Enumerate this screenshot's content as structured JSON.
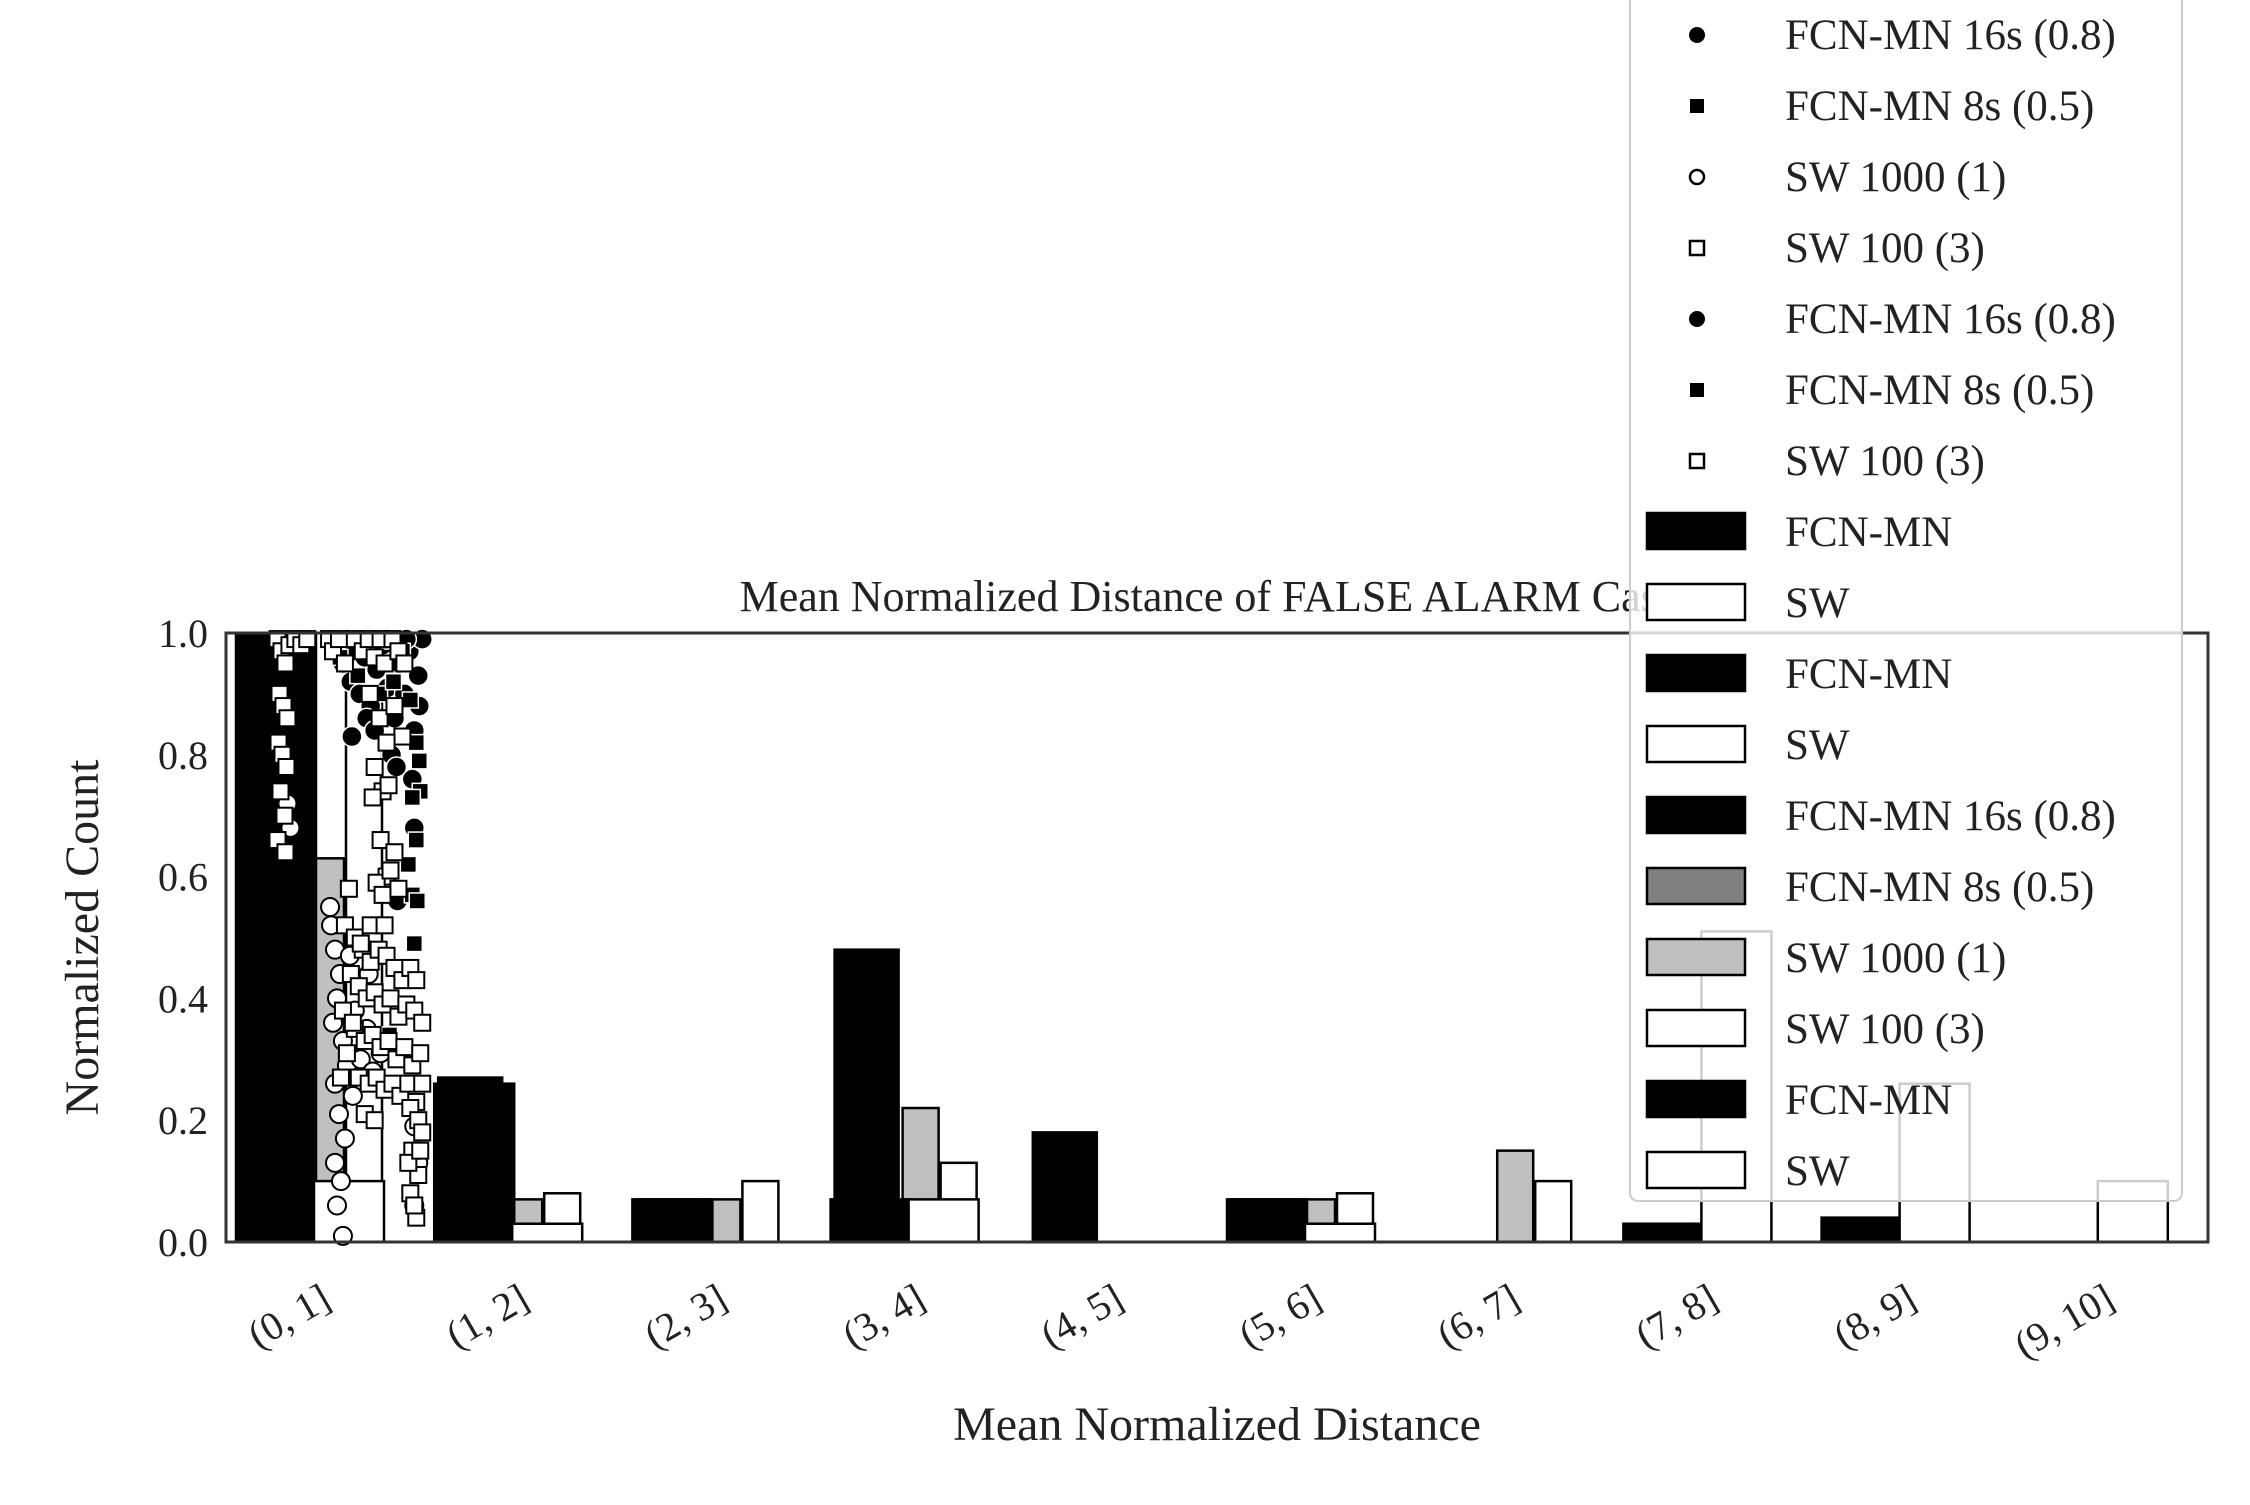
{
  "chart_data": {
    "type": "bar",
    "title": "Mean Normalized Distance of FALSE ALARM Cases",
    "xlabel": "Mean Normalized Distance",
    "ylabel": "Normalized Count",
    "ylim": [
      0.0,
      1.0
    ],
    "yticks": [
      "0.0",
      "0.2",
      "0.4",
      "0.6",
      "0.8",
      "1.0"
    ],
    "categories": [
      "(0, 1]",
      "(1, 2]",
      "(2, 3]",
      "(3, 4]",
      "(4, 5]",
      "(5, 6]",
      "(6, 7]",
      "(7, 8]",
      "(8, 9]",
      "(9, 10]"
    ],
    "grid": false,
    "legend_position": "top-right",
    "colors": {
      "black": "#000000",
      "dark_gray": "#7f7f7f",
      "light_gray": "#bfbfbf",
      "white": "#ffffff",
      "axis": "#333333"
    },
    "series": [
      {
        "name": "FCN-MN 16s (0.8)",
        "kind": "bar",
        "color": "black",
        "values": [
          1.0,
          0.27,
          0.07,
          0.48,
          0.18,
          0.07,
          0.0,
          0.03,
          0.0,
          0.0
        ]
      },
      {
        "name": "FCN-MN 8s (0.5)",
        "kind": "bar",
        "color": "dark_gray",
        "values": [
          0.91,
          0.0,
          0.0,
          0.0,
          0.0,
          0.0,
          0.0,
          0.0,
          0.0,
          0.0
        ]
      },
      {
        "name": "SW 1000 (1)",
        "kind": "bar",
        "color": "light_gray",
        "values": [
          0.63,
          0.07,
          0.07,
          0.22,
          0.0,
          0.07,
          0.15,
          0.0,
          0.0,
          0.0
        ]
      },
      {
        "name": "SW 100 (3)",
        "kind": "bar",
        "color": "white",
        "values": [
          0.96,
          0.08,
          0.1,
          0.13,
          0.0,
          0.08,
          0.1,
          0.0,
          0.0,
          0.0
        ]
      },
      {
        "name": "FCN-MN",
        "kind": "bar",
        "color": "black",
        "values": [
          1.0,
          0.26,
          0.07,
          0.07,
          0.0,
          0.07,
          0.0,
          0.03,
          0.04,
          0.0
        ]
      },
      {
        "name": "SW",
        "kind": "bar",
        "color": "white",
        "values": [
          0.1,
          0.03,
          0.0,
          0.07,
          0.0,
          0.03,
          0.0,
          0.51,
          0.26,
          0.1
        ]
      }
    ],
    "scatter": [
      {
        "name": "FCN-MN 16s (0.8)",
        "marker": "filled-circle",
        "points": [
          [
            1.12,
            0.98
          ],
          [
            1.18,
            0.95
          ],
          [
            1.22,
            0.99
          ],
          [
            1.26,
            0.92
          ],
          [
            1.3,
            0.97
          ],
          [
            1.35,
            0.9
          ],
          [
            1.4,
            0.96
          ],
          [
            1.46,
            0.88
          ],
          [
            1.52,
            0.94
          ],
          [
            1.58,
            0.98
          ],
          [
            1.63,
            0.91
          ],
          [
            1.7,
            0.86
          ],
          [
            1.75,
            0.95
          ],
          [
            1.8,
            0.9
          ],
          [
            1.85,
            0.97
          ],
          [
            1.9,
            0.84
          ],
          [
            1.94,
            0.93
          ],
          [
            1.98,
            0.99
          ],
          [
            1.27,
            0.83
          ],
          [
            1.42,
            0.86
          ],
          [
            1.67,
            0.8
          ],
          [
            1.72,
            0.78
          ],
          [
            1.88,
            0.76
          ],
          [
            1.95,
            0.88
          ],
          [
            1.9,
            0.68
          ],
          [
            1.73,
            0.56
          ],
          [
            1.62,
            0.99
          ],
          [
            1.82,
            0.99
          ],
          [
            1.5,
            0.84
          ]
        ]
      },
      {
        "name": "FCN-MN 8s (0.5)",
        "marker": "filled-square",
        "points": [
          [
            1.15,
            0.96
          ],
          [
            1.33,
            0.93
          ],
          [
            1.55,
            0.9
          ],
          [
            1.78,
            0.97
          ],
          [
            1.86,
            0.89
          ],
          [
            1.92,
            0.82
          ],
          [
            1.96,
            0.74
          ],
          [
            1.88,
            0.73
          ],
          [
            1.92,
            0.66
          ],
          [
            1.84,
            0.62
          ],
          [
            1.88,
            0.57
          ],
          [
            1.93,
            0.56
          ],
          [
            1.9,
            0.49
          ],
          [
            1.65,
            0.34
          ],
          [
            1.72,
            0.32
          ],
          [
            1.81,
            0.3
          ],
          [
            1.95,
            0.79
          ],
          [
            1.69,
            0.92
          ]
        ]
      },
      {
        "name": "SW 1000 (1)",
        "marker": "open-circle",
        "points": [
          [
            0.65,
            0.68
          ],
          [
            0.62,
            0.72
          ],
          [
            1.05,
            0.55
          ],
          [
            1.1,
            0.48
          ],
          [
            1.15,
            0.44
          ],
          [
            1.12,
            0.4
          ],
          [
            1.08,
            0.36
          ],
          [
            1.18,
            0.33
          ],
          [
            1.22,
            0.29
          ],
          [
            1.1,
            0.26
          ],
          [
            1.14,
            0.21
          ],
          [
            1.2,
            0.17
          ],
          [
            1.1,
            0.13
          ],
          [
            1.16,
            0.1
          ],
          [
            1.12,
            0.06
          ],
          [
            1.18,
            0.01
          ],
          [
            1.3,
            0.38
          ],
          [
            1.36,
            0.3
          ],
          [
            1.42,
            0.35
          ],
          [
            1.48,
            0.28
          ],
          [
            1.56,
            0.31
          ],
          [
            1.9,
            0.19
          ],
          [
            1.94,
            0.13
          ],
          [
            1.9,
            0.06
          ],
          [
            1.25,
            0.47
          ],
          [
            1.06,
            0.52
          ],
          [
            1.28,
            0.24
          ],
          [
            1.44,
            0.44
          ]
        ]
      },
      {
        "name": "SW 100 (3)",
        "marker": "open-square",
        "points": [
          [
            0.52,
            0.99
          ],
          [
            0.56,
            0.97
          ],
          [
            0.6,
            0.95
          ],
          [
            0.64,
            0.98
          ],
          [
            0.54,
            0.9
          ],
          [
            0.58,
            0.88
          ],
          [
            0.62,
            0.86
          ],
          [
            0.53,
            0.82
          ],
          [
            0.57,
            0.8
          ],
          [
            0.61,
            0.78
          ],
          [
            0.55,
            0.74
          ],
          [
            0.59,
            0.7
          ],
          [
            0.52,
            0.66
          ],
          [
            0.6,
            0.64
          ],
          [
            0.7,
            0.99
          ],
          [
            0.76,
            0.98
          ],
          [
            0.82,
            0.99
          ],
          [
            1.04,
            0.99
          ],
          [
            1.08,
            0.97
          ],
          [
            1.14,
            0.99
          ],
          [
            1.2,
            0.95
          ],
          [
            1.3,
            0.99
          ],
          [
            1.38,
            0.97
          ],
          [
            1.44,
            0.99
          ],
          [
            1.5,
            0.96
          ],
          [
            1.56,
            0.99
          ],
          [
            1.6,
            0.95
          ],
          [
            1.68,
            0.99
          ],
          [
            1.74,
            0.97
          ],
          [
            1.8,
            0.95
          ],
          [
            1.45,
            0.9
          ],
          [
            1.55,
            0.86
          ],
          [
            1.7,
            0.88
          ],
          [
            1.78,
            0.83
          ],
          [
            1.62,
            0.82
          ],
          [
            1.5,
            0.78
          ],
          [
            1.58,
            0.74
          ],
          [
            1.64,
            0.75
          ],
          [
            1.48,
            0.73
          ],
          [
            1.56,
            0.66
          ],
          [
            1.7,
            0.64
          ],
          [
            1.62,
            0.6
          ],
          [
            1.52,
            0.59
          ],
          [
            1.58,
            0.57
          ],
          [
            1.66,
            0.61
          ],
          [
            1.74,
            0.58
          ],
          [
            1.24,
            0.58
          ],
          [
            1.2,
            0.52
          ],
          [
            1.3,
            0.5
          ],
          [
            1.38,
            0.48
          ],
          [
            1.46,
            0.46
          ],
          [
            1.54,
            0.48
          ],
          [
            1.62,
            0.47
          ],
          [
            1.7,
            0.45
          ],
          [
            1.78,
            0.43
          ],
          [
            1.86,
            0.45
          ],
          [
            1.92,
            0.43
          ],
          [
            1.26,
            0.44
          ],
          [
            1.34,
            0.42
          ],
          [
            1.42,
            0.4
          ],
          [
            1.5,
            0.41
          ],
          [
            1.58,
            0.39
          ],
          [
            1.66,
            0.4
          ],
          [
            1.74,
            0.37
          ],
          [
            1.82,
            0.39
          ],
          [
            1.9,
            0.38
          ],
          [
            1.98,
            0.36
          ],
          [
            1.3,
            0.35
          ],
          [
            1.4,
            0.33
          ],
          [
            1.48,
            0.34
          ],
          [
            1.56,
            0.32
          ],
          [
            1.64,
            0.33
          ],
          [
            1.72,
            0.3
          ],
          [
            1.8,
            0.32
          ],
          [
            1.88,
            0.29
          ],
          [
            1.96,
            0.31
          ],
          [
            1.34,
            0.27
          ],
          [
            1.44,
            0.26
          ],
          [
            1.52,
            0.27
          ],
          [
            1.6,
            0.25
          ],
          [
            1.68,
            0.26
          ],
          [
            1.76,
            0.24
          ],
          [
            1.84,
            0.26
          ],
          [
            1.92,
            0.23
          ],
          [
            1.98,
            0.26
          ],
          [
            1.4,
            0.21
          ],
          [
            1.5,
            0.2
          ],
          [
            1.86,
            0.22
          ],
          [
            1.94,
            0.2
          ],
          [
            1.88,
            0.15
          ],
          [
            1.94,
            0.11
          ],
          [
            1.86,
            0.08
          ],
          [
            1.92,
            0.04
          ],
          [
            1.84,
            0.13
          ],
          [
            1.9,
            0.06
          ],
          [
            1.96,
            0.15
          ],
          [
            1.98,
            0.18
          ],
          [
            1.36,
            0.49
          ],
          [
            1.18,
            0.38
          ],
          [
            1.22,
            0.31
          ],
          [
            1.28,
            0.36
          ],
          [
            1.16,
            0.27
          ],
          [
            1.46,
            0.52
          ],
          [
            1.6,
            0.52
          ]
        ]
      }
    ],
    "legend": [
      {
        "label": "FCN-MN 16s (0.8)",
        "marker": "filled-circle"
      },
      {
        "label": "FCN-MN 8s (0.5)",
        "marker": "filled-square"
      },
      {
        "label": "SW 1000 (1)",
        "marker": "open-circle"
      },
      {
        "label": "SW 100 (3)",
        "marker": "open-square"
      },
      {
        "label": "FCN-MN 16s (0.8)",
        "marker": "filled-circle"
      },
      {
        "label": "FCN-MN 8s (0.5)",
        "marker": "filled-square"
      },
      {
        "label": "SW 100 (3)",
        "marker": "open-square"
      },
      {
        "label": "FCN-MN",
        "marker": "bar",
        "color": "black"
      },
      {
        "label": "SW",
        "marker": "bar",
        "color": "white"
      },
      {
        "label": "FCN-MN",
        "marker": "bar",
        "color": "black"
      },
      {
        "label": "SW",
        "marker": "bar",
        "color": "white"
      },
      {
        "label": "FCN-MN 16s (0.8)",
        "marker": "bar",
        "color": "black"
      },
      {
        "label": "FCN-MN 8s (0.5)",
        "marker": "bar",
        "color": "dark_gray"
      },
      {
        "label": "SW 1000 (1)",
        "marker": "bar",
        "color": "light_gray"
      },
      {
        "label": "SW 100 (3)",
        "marker": "bar",
        "color": "white"
      },
      {
        "label": "FCN-MN",
        "marker": "bar",
        "color": "black"
      },
      {
        "label": "SW",
        "marker": "bar",
        "color": "white"
      }
    ]
  }
}
